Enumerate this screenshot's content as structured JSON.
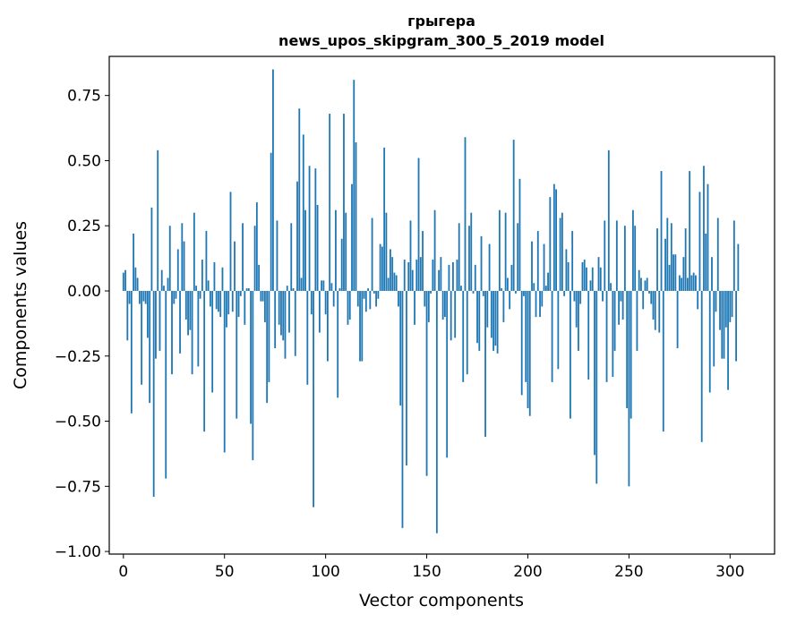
{
  "chart_data": {
    "type": "bar",
    "title": "грыгера",
    "subtitle": "news_upos_skipgram_300_5_2019 model",
    "xlabel": "Vector components",
    "ylabel": "Components values",
    "xlim": [
      -7,
      322
    ],
    "ylim": [
      -1.01,
      0.9
    ],
    "xticks": [
      0,
      50,
      100,
      150,
      200,
      250,
      300
    ],
    "xtick_labels": [
      "0",
      "50",
      "100",
      "150",
      "200",
      "250",
      "300"
    ],
    "yticks": [
      -1.0,
      -0.75,
      -0.5,
      -0.25,
      0.0,
      0.25,
      0.5,
      0.75
    ],
    "ytick_labels": [
      "−1.00",
      "−0.75",
      "−0.50",
      "−0.25",
      "0.00",
      "0.25",
      "0.50",
      "0.75"
    ],
    "grid": false,
    "color": "#1f77b4",
    "values": [
      0.07,
      0.08,
      -0.19,
      -0.05,
      -0.47,
      0.22,
      0.09,
      0.05,
      -0.05,
      -0.36,
      -0.04,
      -0.05,
      -0.18,
      -0.43,
      0.32,
      -0.79,
      -0.26,
      0.54,
      -0.23,
      0.08,
      0.02,
      -0.72,
      0.05,
      0.25,
      -0.32,
      -0.05,
      -0.03,
      0.16,
      -0.24,
      0.26,
      0.19,
      -0.11,
      -0.17,
      -0.15,
      -0.32,
      0.3,
      0.02,
      -0.29,
      -0.03,
      0.12,
      -0.54,
      0.23,
      0.04,
      -0.06,
      -0.39,
      0.11,
      -0.07,
      -0.08,
      -0.1,
      0.09,
      -0.62,
      -0.14,
      -0.09,
      0.38,
      -0.08,
      0.19,
      -0.49,
      -0.1,
      -0.02,
      0.26,
      -0.13,
      0.01,
      0.01,
      -0.51,
      -0.65,
      0.25,
      0.34,
      0.1,
      -0.04,
      -0.04,
      -0.12,
      -0.43,
      -0.35,
      0.53,
      0.85,
      -0.22,
      0.27,
      -0.13,
      -0.17,
      -0.19,
      -0.26,
      0.02,
      -0.16,
      0.26,
      0.01,
      -0.25,
      0.42,
      0.7,
      0.05,
      0.6,
      0.31,
      -0.36,
      0.48,
      -0.09,
      -0.83,
      0.47,
      0.33,
      -0.16,
      0.04,
      0.04,
      -0.09,
      -0.27,
      0.68,
      0.03,
      -0.06,
      0.31,
      -0.41,
      0.01,
      0.2,
      0.68,
      0.3,
      -0.13,
      -0.11,
      0.41,
      0.81,
      0.57,
      -0.06,
      -0.27,
      -0.27,
      -0.03,
      -0.08,
      0.01,
      -0.07,
      0.28,
      -0.01,
      -0.06,
      -0.03,
      0.18,
      0.17,
      0.55,
      0.3,
      0.05,
      0.16,
      0.13,
      0.07,
      0.06,
      -0.06,
      -0.44,
      -0.91,
      0.12,
      -0.67,
      0.11,
      0.27,
      0.08,
      -0.13,
      0.12,
      0.51,
      0.13,
      0.23,
      -0.06,
      -0.71,
      -0.12,
      -0.01,
      0.12,
      0.31,
      -0.93,
      0.08,
      0.13,
      -0.11,
      -0.1,
      -0.64,
      0.1,
      -0.19,
      0.11,
      -0.18,
      0.12,
      0.26,
      0.02,
      -0.35,
      0.59,
      -0.32,
      0.25,
      0.3,
      -0.01,
      0.1,
      -0.2,
      -0.23,
      0.21,
      -0.02,
      -0.56,
      -0.14,
      0.18,
      -0.18,
      -0.23,
      -0.21,
      -0.24,
      0.31,
      0.01,
      -0.12,
      0.3,
      0.05,
      -0.07,
      0.1,
      0.58,
      -0.01,
      0.26,
      0.43,
      -0.4,
      -0.02,
      -0.35,
      -0.45,
      -0.48,
      0.19,
      0.03,
      -0.1,
      0.23,
      -0.1,
      -0.06,
      0.18,
      0.02,
      0.07,
      0.36,
      -0.35,
      0.41,
      0.39,
      -0.3,
      0.28,
      0.3,
      -0.02,
      0.16,
      0.11,
      -0.49,
      0.23,
      -0.04,
      -0.14,
      -0.23,
      -0.05,
      0.11,
      0.12,
      0.09,
      -0.34,
      0.04,
      0.09,
      -0.63,
      -0.74,
      0.13,
      0.09,
      -0.04,
      0.27,
      -0.35,
      0.54,
      0.03,
      -0.33,
      -0.23,
      0.27,
      -0.13,
      -0.04,
      -0.11,
      0.25,
      -0.45,
      -0.75,
      -0.49,
      0.31,
      0.25,
      -0.23,
      0.08,
      0.05,
      -0.07,
      0.04,
      0.05,
      -0.01,
      -0.05,
      -0.11,
      -0.15,
      0.24,
      -0.16,
      0.46,
      -0.54,
      0.2,
      0.28,
      0.1,
      0.26,
      0.14,
      0.14,
      -0.22,
      0.06,
      0.05,
      0.13,
      0.24,
      0.05,
      0.46,
      0.06,
      0.07,
      0.06,
      -0.07,
      0.38,
      -0.58,
      0.48,
      0.22,
      0.41,
      -0.39,
      0.13,
      -0.29,
      -0.08,
      0.28,
      -0.15,
      -0.26,
      -0.26,
      -0.14,
      -0.38,
      -0.12,
      -0.1,
      0.27,
      -0.27,
      0.18
    ]
  }
}
